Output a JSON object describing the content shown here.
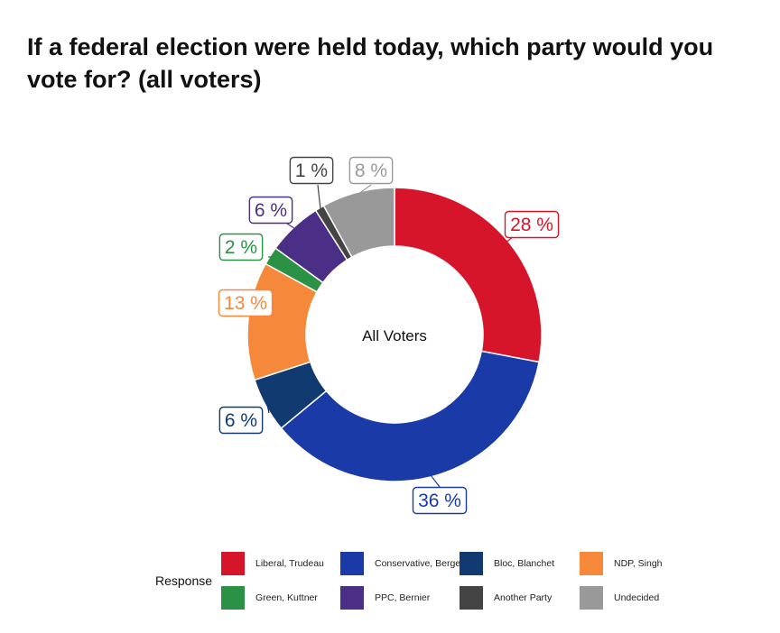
{
  "chart_data": {
    "type": "pie",
    "subtype": "donut",
    "title": "If a federal election were held today, which party would you vote for? (all voters)",
    "center_label": "All Voters",
    "legend_title": "Response",
    "legend_position": "bottom",
    "label_suffix": " %",
    "slices": [
      {
        "label": "Liberal, Trudeau",
        "value": 28,
        "color": "#d7152a"
      },
      {
        "label": "Conservative, Bergen",
        "value": 36,
        "color": "#1a3aa8"
      },
      {
        "label": "Bloc, Blanchet",
        "value": 6,
        "color": "#113a70"
      },
      {
        "label": "NDP, Singh",
        "value": 13,
        "color": "#f5883a"
      },
      {
        "label": "Green, Kuttner",
        "value": 2,
        "color": "#2a9145"
      },
      {
        "label": "PPC, Bernier",
        "value": 6,
        "color": "#4b2e86"
      },
      {
        "label": "Another Party",
        "value": 1,
        "color": "#444444"
      },
      {
        "label": "Undecided",
        "value": 8,
        "color": "#999999"
      }
    ]
  }
}
